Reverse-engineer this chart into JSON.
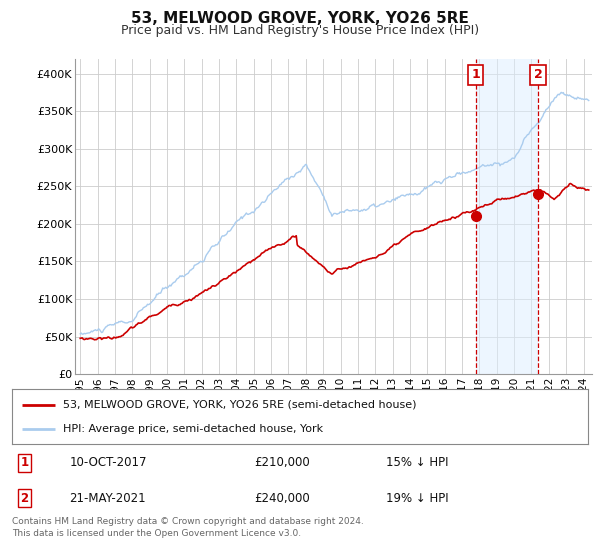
{
  "title": "53, MELWOOD GROVE, YORK, YO26 5RE",
  "subtitle": "Price paid vs. HM Land Registry's House Price Index (HPI)",
  "background_color": "#ffffff",
  "plot_bg_color": "#ffffff",
  "grid_color": "#cccccc",
  "ylim": [
    0,
    420000
  ],
  "yticks": [
    0,
    50000,
    100000,
    150000,
    200000,
    250000,
    300000,
    350000,
    400000
  ],
  "ytick_labels": [
    "£0",
    "£50K",
    "£100K",
    "£150K",
    "£200K",
    "£250K",
    "£300K",
    "£350K",
    "£400K"
  ],
  "xlim_start": 1994.7,
  "xlim_end": 2024.5,
  "xticks": [
    1995,
    1996,
    1997,
    1998,
    1999,
    2000,
    2001,
    2002,
    2003,
    2004,
    2005,
    2006,
    2007,
    2008,
    2009,
    2010,
    2011,
    2012,
    2013,
    2014,
    2015,
    2016,
    2017,
    2018,
    2019,
    2020,
    2021,
    2022,
    2023,
    2024
  ],
  "marker1_x": 2017.78,
  "marker1_y": 210000,
  "marker2_x": 2021.38,
  "marker2_y": 240000,
  "vline1_x": 2017.78,
  "vline2_x": 2021.38,
  "legend_line1": "53, MELWOOD GROVE, YORK, YO26 5RE (semi-detached house)",
  "legend_line2": "HPI: Average price, semi-detached house, York",
  "annotation1_date": "10-OCT-2017",
  "annotation1_price": "£210,000",
  "annotation1_hpi": "15% ↓ HPI",
  "annotation2_date": "21-MAY-2021",
  "annotation2_price": "£240,000",
  "annotation2_hpi": "19% ↓ HPI",
  "footnote1": "Contains HM Land Registry data © Crown copyright and database right 2024.",
  "footnote2": "This data is licensed under the Open Government Licence v3.0.",
  "red_line_color": "#cc0000",
  "blue_line_color": "#aaccee",
  "marker_color": "#cc0000",
  "vline_color": "#cc0000",
  "highlight_color": "#ddeeff"
}
